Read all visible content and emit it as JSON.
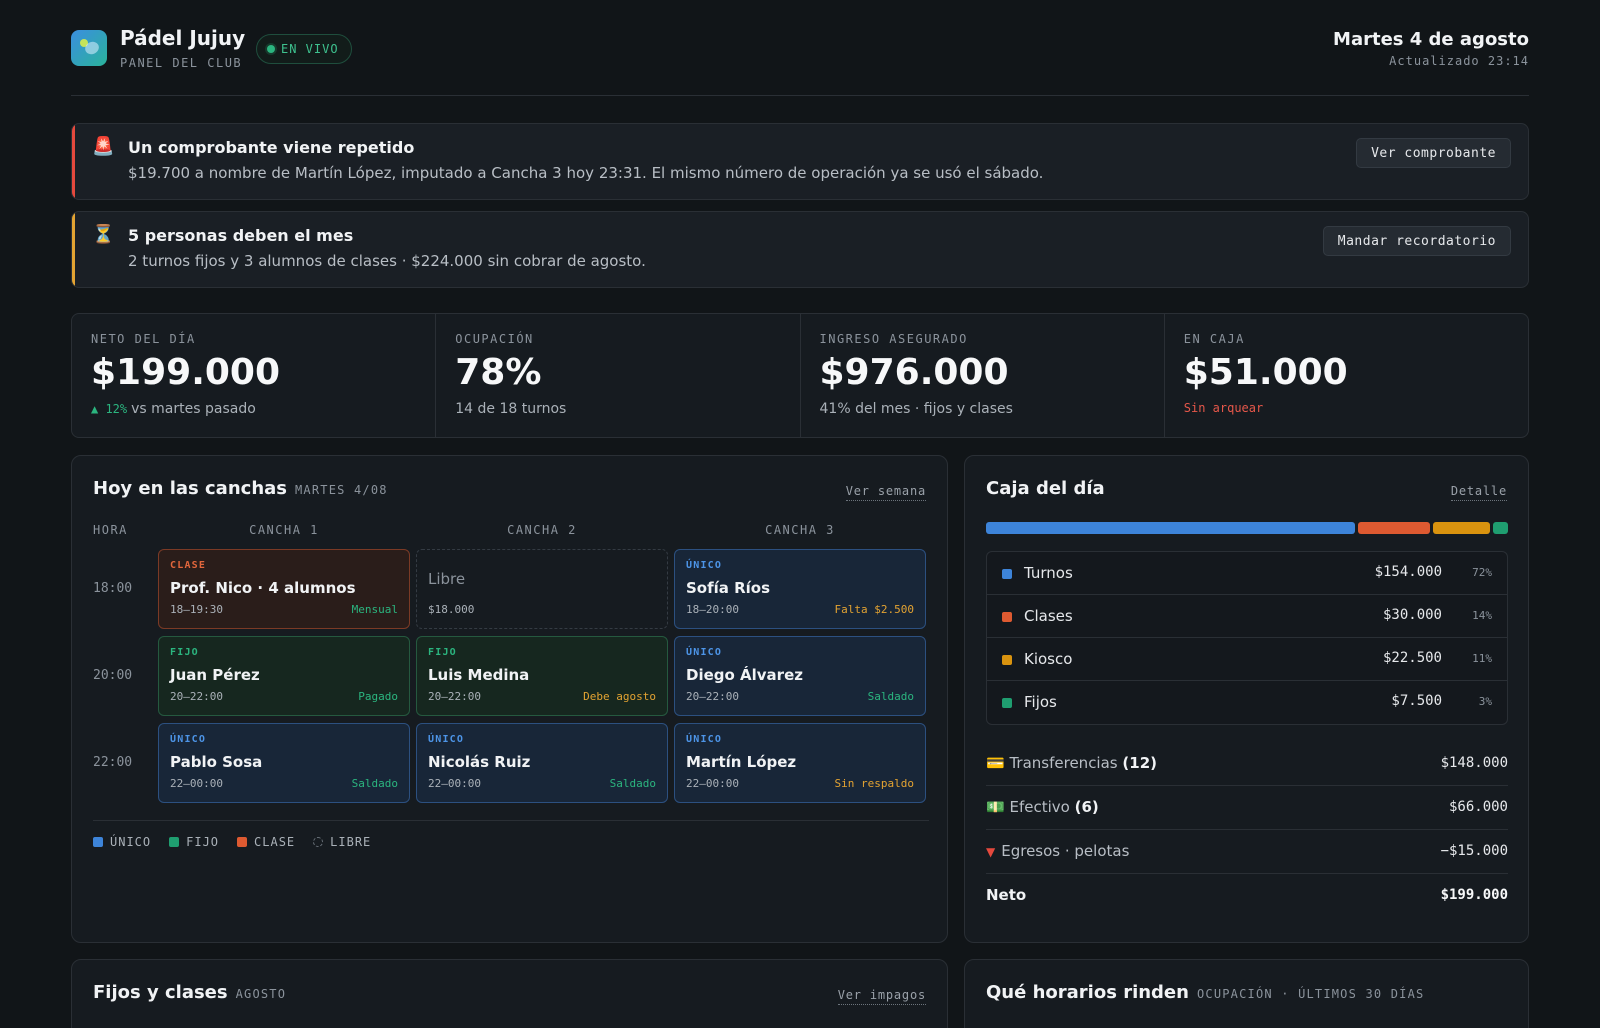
{
  "header": {
    "club_name": "Pádel Jujuy",
    "subtitle": "PANEL DEL CLUB",
    "live_label": "EN VIVO",
    "date": "Martes 4 de agosto",
    "updated": "Actualizado 23:14"
  },
  "alerts": [
    {
      "icon": "🚨",
      "title": "Un comprobante viene repetido",
      "body": "$19.700 a nombre de Martín López, imputado a Cancha 3 hoy 23:31. El mismo número de operación ya se usó el sábado.",
      "button": "Ver comprobante",
      "accent": "#e5493d"
    },
    {
      "icon": "⏳",
      "title": "5 personas deben el mes",
      "body": "2 turnos fijos y 3 alumnos de clases · $224.000 sin cobrar de agosto.",
      "button": "Mandar recordatorio",
      "accent": "#e3a332"
    }
  ],
  "kpis": [
    {
      "label": "NETO DEL DÍA",
      "value": "$199.000",
      "delta": "▲ 12%",
      "sub": "vs martes pasado"
    },
    {
      "label": "OCUPACIÓN",
      "value": "78%",
      "sub": "14 de 18 turnos"
    },
    {
      "label": "INGRESO ASEGURADO",
      "value": "$976.000",
      "sub": "41% del mes · fijos y clases"
    },
    {
      "label": "EN CAJA",
      "value": "$51.000",
      "sub": "Sin arquear"
    }
  ],
  "schedule": {
    "title": "Hoy en las canchas",
    "tag": "MARTES 4/08",
    "link": "Ver semana",
    "hour_header": "HORA",
    "courts": [
      "CANCHA 1",
      "CANCHA 2",
      "CANCHA 3"
    ],
    "hours": [
      "18:00",
      "20:00",
      "22:00"
    ],
    "rows": [
      [
        {
          "type": "clase",
          "kind": "CLASE",
          "who": "Prof. Nico · 4 alumnos",
          "time": "18–19:30",
          "status": "Mensual",
          "status_tone": "green"
        },
        {
          "type": "libre",
          "who": "Libre",
          "time": "$18.000"
        },
        {
          "type": "unico",
          "kind": "ÚNICO",
          "who": "Sofía Ríos",
          "time": "18–20:00",
          "status": "Falta $2.500",
          "status_tone": "amber"
        }
      ],
      [
        {
          "type": "fijo",
          "kind": "FIJO",
          "who": "Juan Pérez",
          "time": "20–22:00",
          "status": "Pagado",
          "status_tone": "green"
        },
        {
          "type": "fijo",
          "kind": "FIJO",
          "who": "Luis Medina",
          "time": "20–22:00",
          "status": "Debe agosto",
          "status_tone": "amber"
        },
        {
          "type": "unico",
          "kind": "ÚNICO",
          "who": "Diego Álvarez",
          "time": "20–22:00",
          "status": "Saldado",
          "status_tone": "green"
        }
      ],
      [
        {
          "type": "unico",
          "kind": "ÚNICO",
          "who": "Pablo Sosa",
          "time": "22–00:00",
          "status": "Saldado",
          "status_tone": "green"
        },
        {
          "type": "unico",
          "kind": "ÚNICO",
          "who": "Nicolás Ruiz",
          "time": "22–00:00",
          "status": "Saldado",
          "status_tone": "green"
        },
        {
          "type": "unico",
          "kind": "ÚNICO",
          "who": "Martín López",
          "time": "22–00:00",
          "status": "Sin respaldo",
          "status_tone": "amber"
        }
      ]
    ],
    "legend": [
      {
        "label": "ÚNICO",
        "color": "#3d84d9"
      },
      {
        "label": "FIJO",
        "color": "#1f9e70"
      },
      {
        "label": "CLASE",
        "color": "#de5a31"
      },
      {
        "label": "LIBRE",
        "color": ""
      }
    ]
  },
  "caja": {
    "title": "Caja del día",
    "link": "Detalle",
    "categories": [
      {
        "name": "Turnos",
        "amount": "$154.000",
        "pct": "72%",
        "share": 72,
        "color": "#3d84d9"
      },
      {
        "name": "Clases",
        "amount": "$30.000",
        "pct": "14%",
        "share": 14,
        "color": "#de5a31"
      },
      {
        "name": "Kiosco",
        "amount": "$22.500",
        "pct": "11%",
        "share": 11,
        "color": "#d9930f"
      },
      {
        "name": "Fijos",
        "amount": "$7.500",
        "pct": "3%",
        "share": 3,
        "color": "#1f9e70"
      }
    ],
    "payments": [
      {
        "icon": "💳",
        "label": "Transferencias",
        "count": "(12)",
        "value": "$148.000"
      },
      {
        "icon": "💵",
        "label": "Efectivo",
        "count": "(6)",
        "value": "$66.000"
      },
      {
        "icon": "▼",
        "label": "Egresos · pelotas",
        "count": "",
        "value": "−$15.000"
      }
    ],
    "total_label": "Neto",
    "total_value": "$199.000"
  },
  "fijos": {
    "title": "Fijos y clases",
    "tag": "AGOSTO",
    "link": "Ver impagos"
  },
  "horarios": {
    "title": "Qué horarios rinden",
    "tag": "OCUPACIÓN · ÚLTIMOS 30 DÍAS"
  }
}
